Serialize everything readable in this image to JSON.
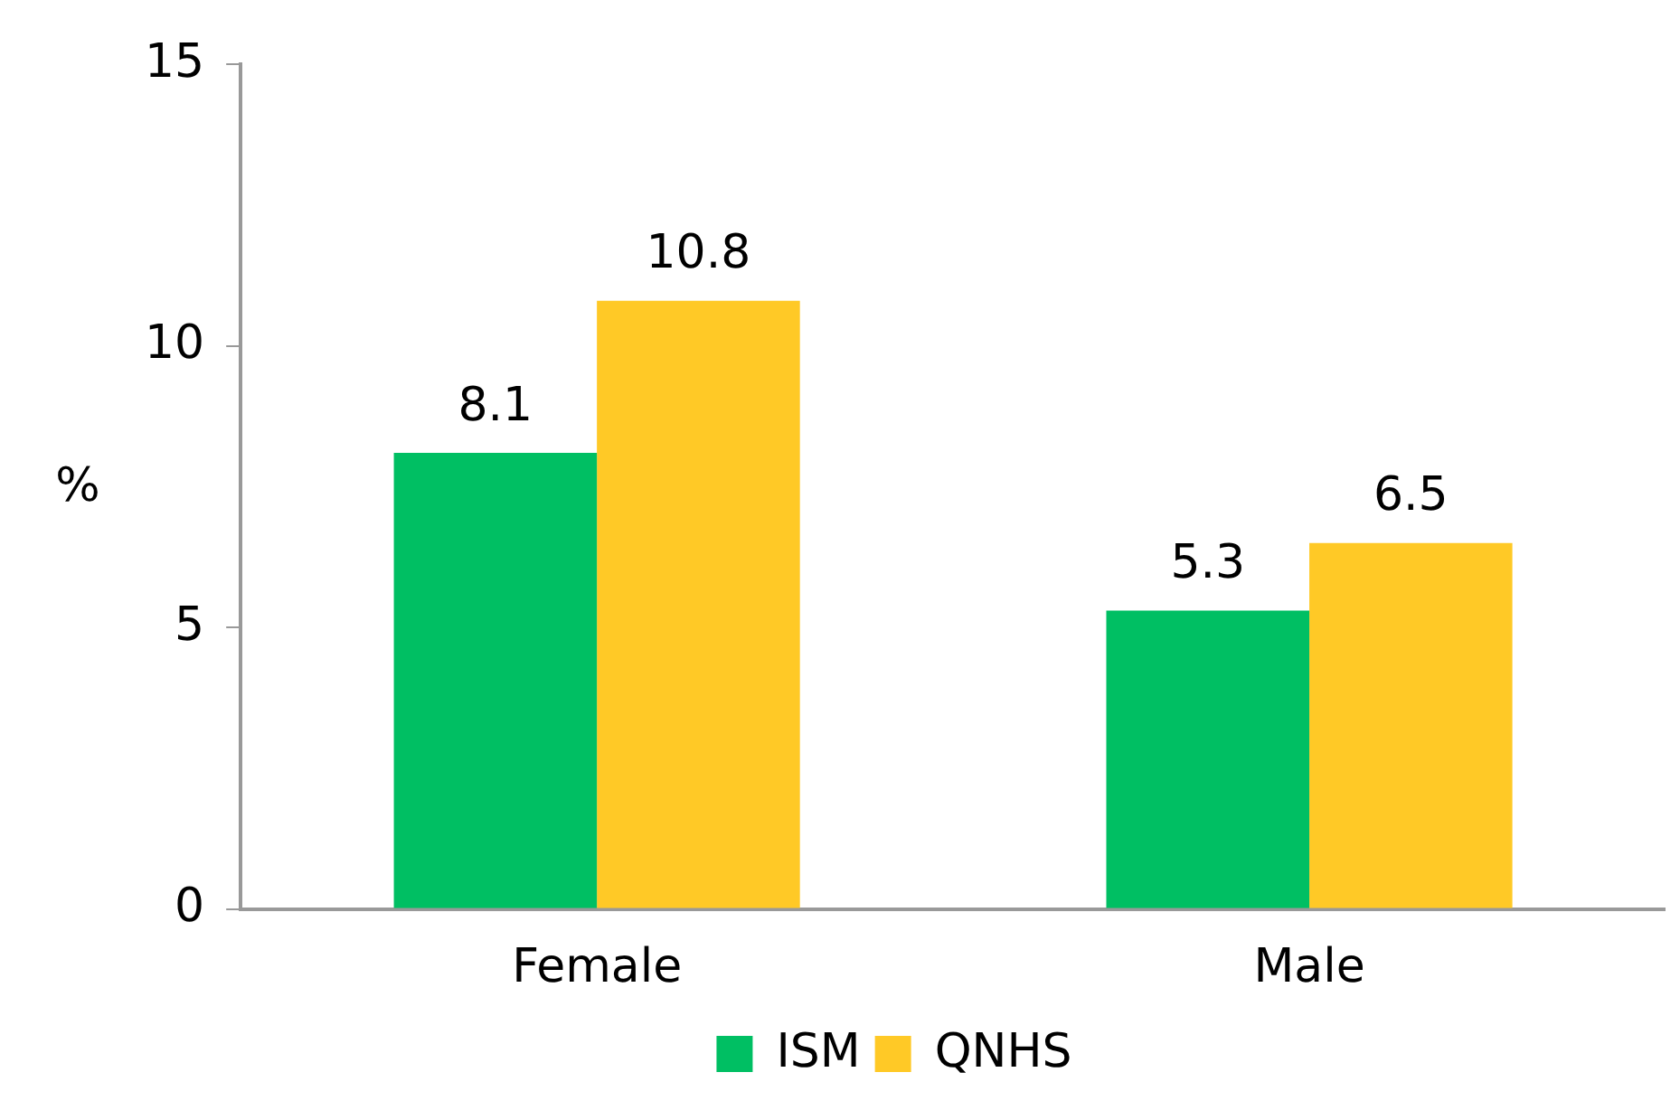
{
  "chart_data": {
    "type": "bar",
    "ylabel": "%",
    "categories": [
      "Female",
      "Male"
    ],
    "series": [
      {
        "name": "ISM",
        "color": "#00bf63",
        "values": [
          8.1,
          5.3
        ]
      },
      {
        "name": "QNHS",
        "color": "#ffc926",
        "values": [
          10.8,
          6.5
        ]
      }
    ],
    "ylim": [
      0,
      15
    ],
    "yticks": [
      0,
      5,
      10,
      15
    ],
    "grid": false,
    "legend": "bottom",
    "data_labels": true
  }
}
